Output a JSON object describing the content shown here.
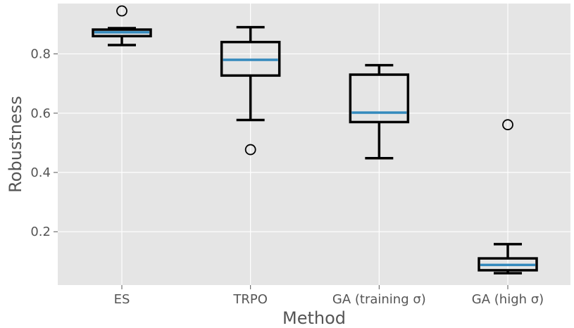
{
  "chart_data": {
    "type": "box",
    "title": "",
    "xlabel": "Method",
    "ylabel": "Robustness",
    "ylim": [
      0.02,
      0.97
    ],
    "yticks": [
      0.2,
      0.4,
      0.6,
      0.8
    ],
    "ytick_labels": [
      "0.2",
      "0.4",
      "0.6",
      "0.8"
    ],
    "grid": true,
    "colors": {
      "background": "#e5e5e5",
      "grid": "#ffffff",
      "box": "#000000",
      "median": "#348abd"
    },
    "categories": [
      "ES",
      "TRPO",
      "GA (training σ)",
      "GA (high σ)"
    ],
    "boxes": [
      {
        "whisker_low": 0.83,
        "q1": 0.86,
        "median": 0.873,
        "q3": 0.882,
        "whisker_high": 0.887,
        "outliers": [
          0.945
        ]
      },
      {
        "whisker_low": 0.577,
        "q1": 0.727,
        "median": 0.78,
        "q3": 0.84,
        "whisker_high": 0.89,
        "outliers": [
          0.477
        ]
      },
      {
        "whisker_low": 0.448,
        "q1": 0.57,
        "median": 0.602,
        "q3": 0.73,
        "whisker_high": 0.762,
        "outliers": []
      },
      {
        "whisker_low": 0.06,
        "q1": 0.07,
        "median": 0.088,
        "q3": 0.11,
        "whisker_high": 0.158,
        "outliers": [
          0.561
        ]
      }
    ]
  }
}
